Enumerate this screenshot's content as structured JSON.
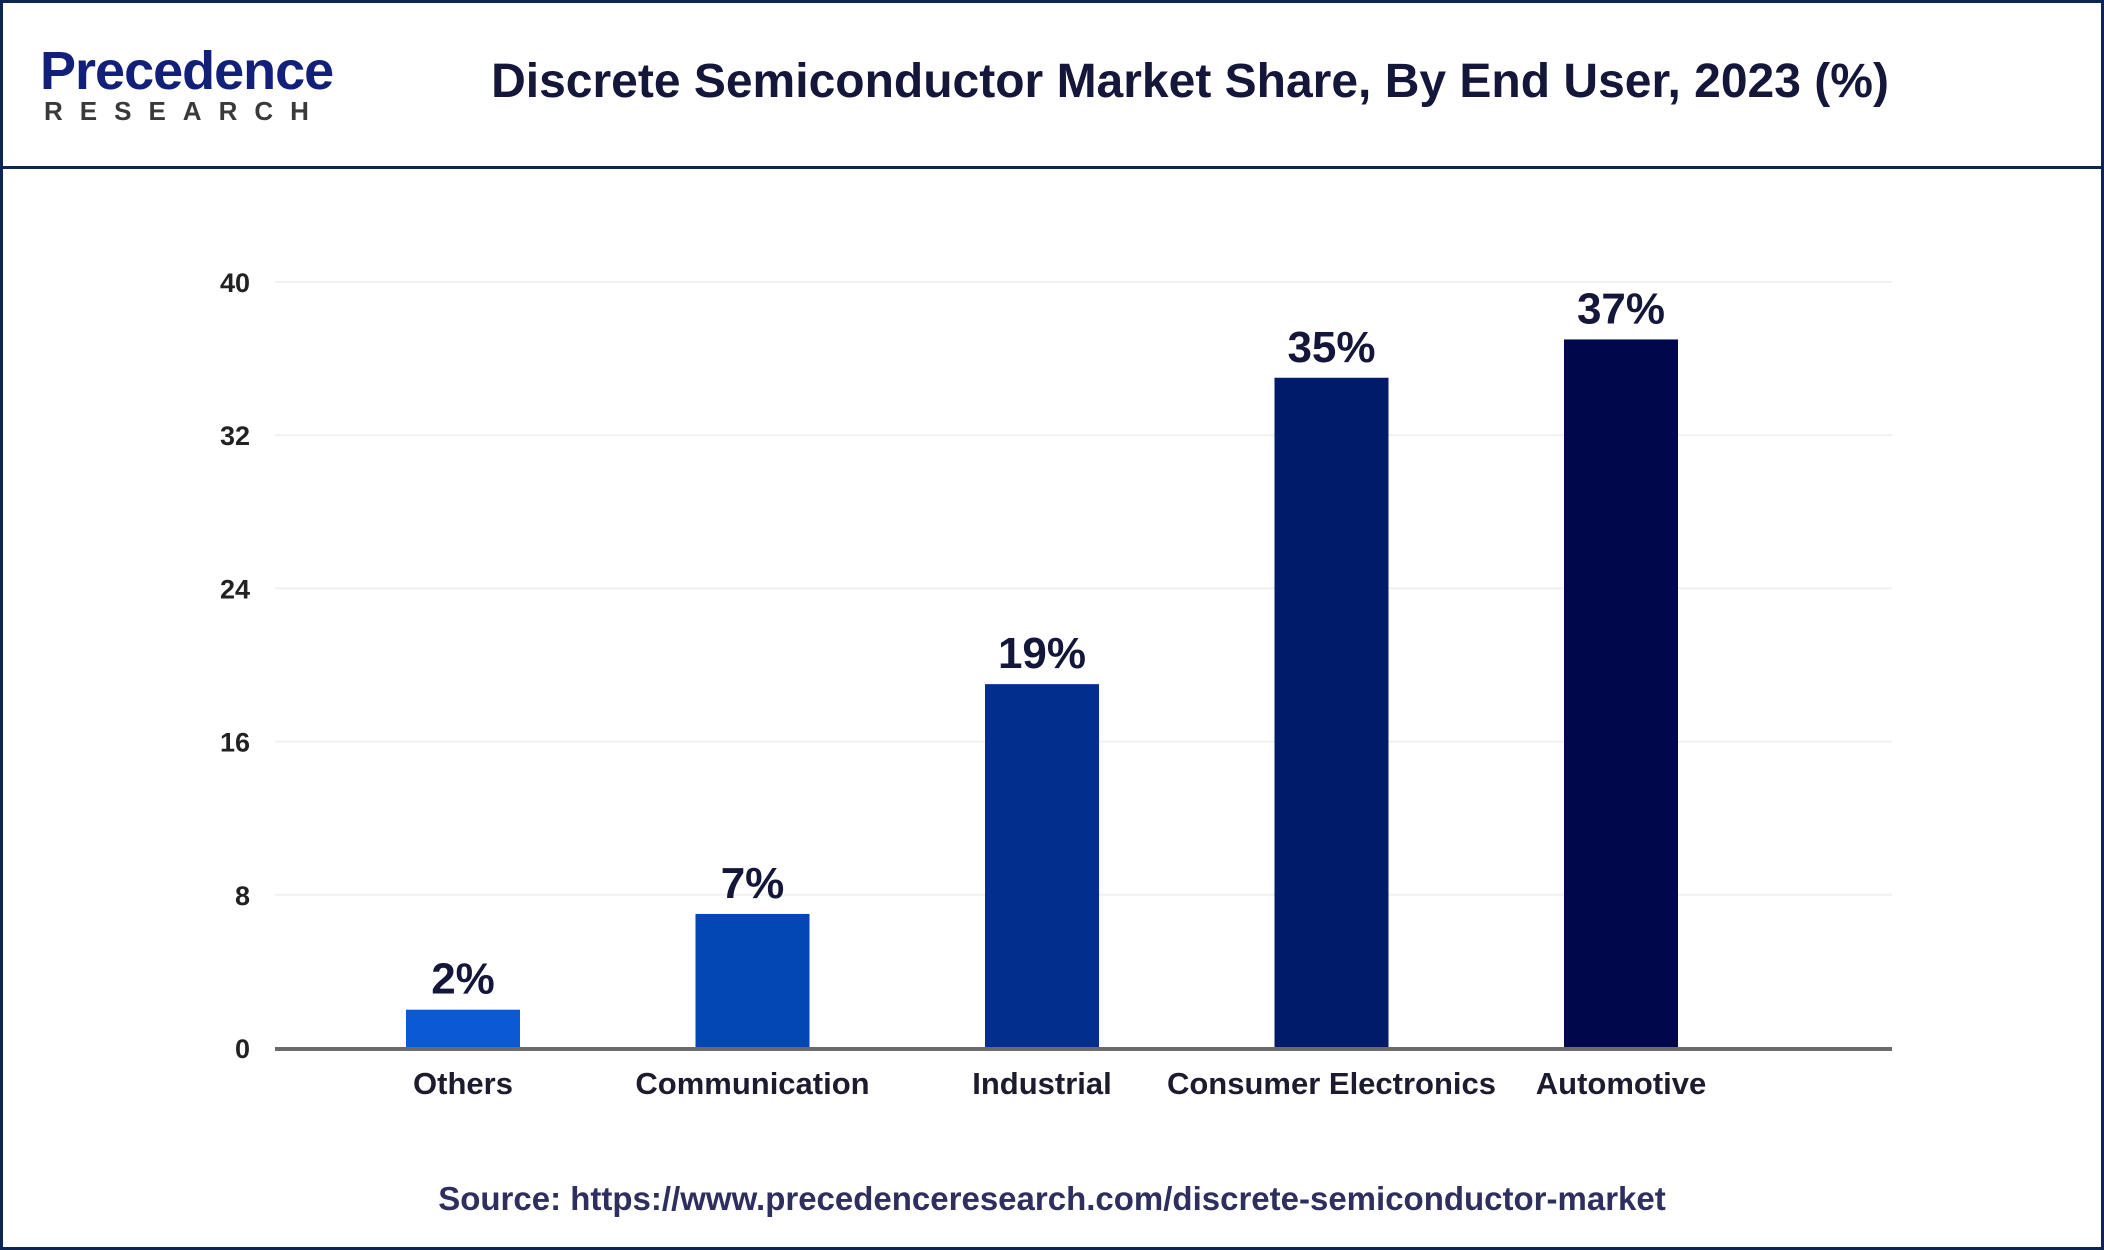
{
  "header": {
    "logo_text": "Precedence",
    "logo_subtext": "RESEARCH",
    "title": "Discrete Semiconductor Market Share, By End User, 2023 (%)"
  },
  "chart_data": {
    "type": "bar",
    "title": "Discrete Semiconductor Market Share, By End User, 2023 (%)",
    "xlabel": "",
    "ylabel": "",
    "categories": [
      "Others",
      "Communication",
      "Industrial",
      "Consumer Electronics",
      "Automotive"
    ],
    "values": [
      2,
      7,
      19,
      35,
      37
    ],
    "data_labels": [
      "2%",
      "7%",
      "19%",
      "35%",
      "37%"
    ],
    "colors": [
      "#0a5ad6",
      "#0347b4",
      "#022e8e",
      "#001b6a",
      "#00074a"
    ],
    "ylim": [
      0,
      40
    ],
    "yticks": [
      0,
      8,
      16,
      24,
      32,
      40
    ],
    "grid": true,
    "legend": "none"
  },
  "footer": {
    "source": "Source: https://www.precedenceresearch.com/discrete-semiconductor-market"
  }
}
